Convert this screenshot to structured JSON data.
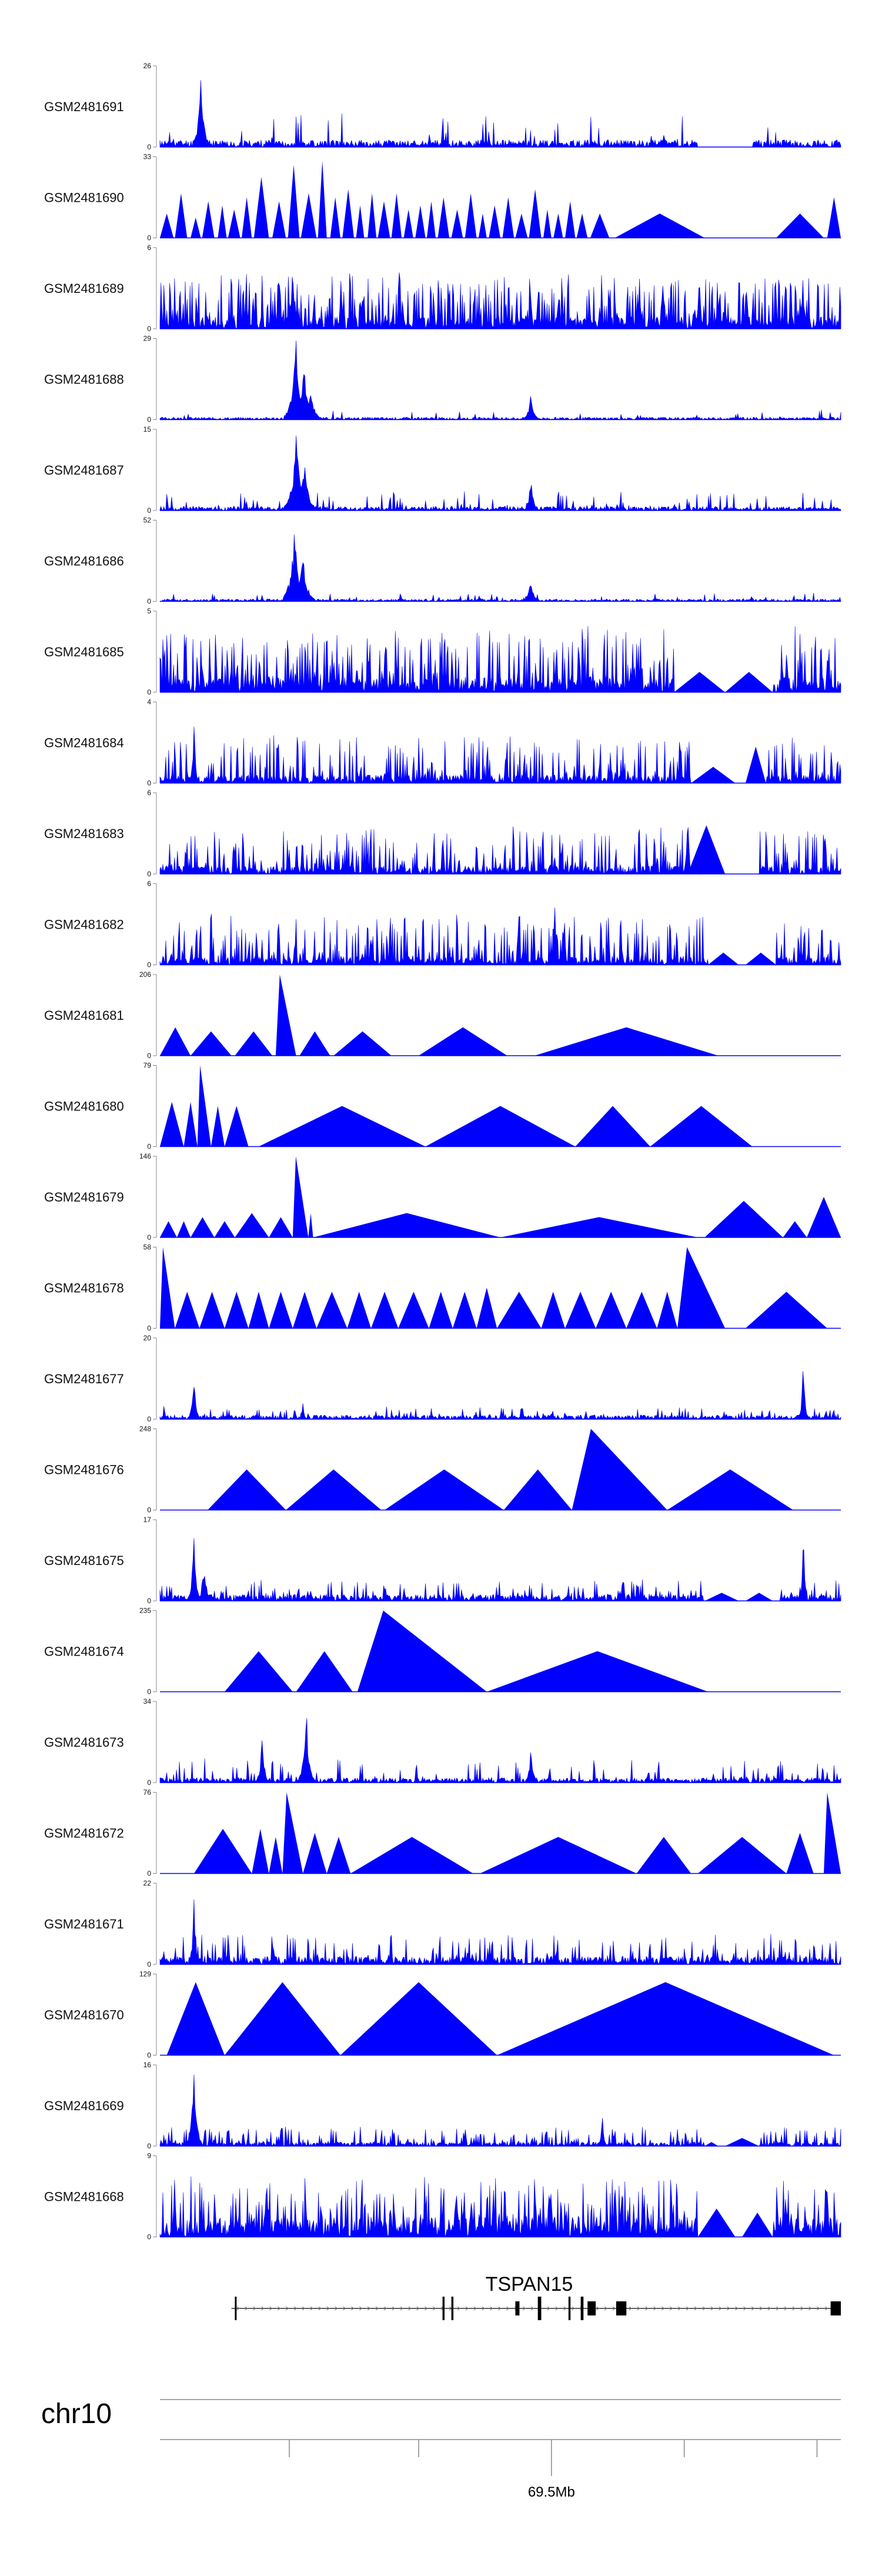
{
  "chart_data": {
    "type": "area",
    "title": "",
    "fill_color": "#0000ff",
    "axis_color": "#888888",
    "chromosome": "chr10",
    "position_label": "69.5Mb",
    "x_range": [
      0,
      1000
    ],
    "tracks": [
      {
        "name": "GSM2481691",
        "ymax": 26,
        "seed": 11,
        "base": 0.09,
        "spikeFreq": 0.06,
        "spikeAmp": 0.35,
        "peaks": [
          [
            60,
            1.0,
            4
          ],
          [
            740,
            0.22,
            3
          ]
        ],
        "tris": [],
        "gaps": [
          [
            790,
            870
          ]
        ]
      },
      {
        "name": "GSM2481690",
        "ymax": 33,
        "seed": 12,
        "base": 0,
        "spikeFreq": 0,
        "spikeAmp": 0,
        "peaks": [],
        "tris": [
          [
            0,
            20,
            0.3
          ],
          [
            22,
            40,
            0.55
          ],
          [
            45,
            60,
            0.25
          ],
          [
            62,
            80,
            0.45
          ],
          [
            85,
            98,
            0.4
          ],
          [
            100,
            118,
            0.35
          ],
          [
            120,
            135,
            0.5
          ],
          [
            138,
            160,
            0.75
          ],
          [
            165,
            185,
            0.45
          ],
          [
            188,
            205,
            0.9
          ],
          [
            207,
            230,
            0.55
          ],
          [
            232,
            245,
            0.95
          ],
          [
            250,
            265,
            0.5
          ],
          [
            268,
            285,
            0.6
          ],
          [
            288,
            300,
            0.4
          ],
          [
            305,
            318,
            0.55
          ],
          [
            320,
            338,
            0.45
          ],
          [
            340,
            355,
            0.55
          ],
          [
            358,
            372,
            0.35
          ],
          [
            375,
            390,
            0.4
          ],
          [
            392,
            405,
            0.45
          ],
          [
            408,
            425,
            0.5
          ],
          [
            428,
            445,
            0.35
          ],
          [
            448,
            465,
            0.55
          ],
          [
            468,
            480,
            0.3
          ],
          [
            483,
            500,
            0.4
          ],
          [
            503,
            520,
            0.5
          ],
          [
            522,
            540,
            0.3
          ],
          [
            542,
            560,
            0.6
          ],
          [
            563,
            575,
            0.35
          ],
          [
            578,
            592,
            0.3
          ],
          [
            595,
            610,
            0.45
          ],
          [
            612,
            628,
            0.3
          ],
          [
            632,
            660,
            0.3
          ],
          [
            668,
            800,
            0.3
          ],
          [
            900,
            900,
            0
          ],
          [
            905,
            975,
            0.3
          ],
          [
            980,
            1000,
            0.5
          ]
        ],
        "gaps": []
      },
      {
        "name": "GSM2481689",
        "ymax": 6,
        "seed": 13,
        "base": 0.15,
        "spikeFreq": 0.5,
        "spikeAmp": 0.55,
        "peaks": [
          [
            195,
            0.9,
            3
          ]
        ],
        "tris": [],
        "gaps": []
      },
      {
        "name": "GSM2481688",
        "ymax": 29,
        "seed": 14,
        "base": 0.03,
        "spikeFreq": 0.04,
        "spikeAmp": 0.1,
        "peaks": [
          [
            200,
            1.0,
            6
          ],
          [
            212,
            0.7,
            6
          ],
          [
            222,
            0.4,
            5
          ],
          [
            545,
            0.35,
            4
          ]
        ],
        "tris": [],
        "gaps": []
      },
      {
        "name": "GSM2481687",
        "ymax": 15,
        "seed": 15,
        "base": 0.05,
        "spikeFreq": 0.12,
        "spikeAmp": 0.2,
        "peaks": [
          [
            200,
            1.0,
            6
          ],
          [
            212,
            0.65,
            6
          ],
          [
            545,
            0.5,
            3
          ]
        ],
        "tris": [],
        "gaps": []
      },
      {
        "name": "GSM2481686",
        "ymax": 52,
        "seed": 16,
        "base": 0.03,
        "spikeFreq": 0.05,
        "spikeAmp": 0.08,
        "peaks": [
          [
            198,
            1.0,
            6
          ],
          [
            210,
            0.6,
            6
          ],
          [
            545,
            0.3,
            4
          ]
        ],
        "tris": [],
        "gaps": []
      },
      {
        "name": "GSM2481685",
        "ymax": 5,
        "seed": 17,
        "base": 0.18,
        "spikeFreq": 0.45,
        "spikeAmp": 0.65,
        "peaks": [],
        "tris": [
          [
            755,
            830,
            0.25
          ],
          [
            830,
            900,
            0.25
          ]
        ],
        "gaps": [
          [
            755,
            900
          ]
        ]
      },
      {
        "name": "GSM2481684",
        "ymax": 4,
        "seed": 18,
        "base": 0.1,
        "spikeFreq": 0.35,
        "spikeAmp": 0.5,
        "peaks": [
          [
            50,
            0.95,
            2
          ]
        ],
        "tris": [
          [
            780,
            845,
            0.2
          ],
          [
            860,
            890,
            0.45
          ]
        ],
        "gaps": [
          [
            780,
            890
          ]
        ]
      },
      {
        "name": "GSM2481683",
        "ymax": 6,
        "seed": 19,
        "base": 0.1,
        "spikeFreq": 0.3,
        "spikeAmp": 0.5,
        "peaks": [
          [
            775,
            0.95,
            2
          ]
        ],
        "tris": [
          [
            775,
            830,
            0.6
          ],
          [
            880,
            890,
            0.1
          ]
        ],
        "gaps": [
          [
            780,
            880
          ]
        ]
      },
      {
        "name": "GSM2481682",
        "ymax": 6,
        "seed": 20,
        "base": 0.1,
        "spikeFreq": 0.35,
        "spikeAmp": 0.55,
        "peaks": [
          [
            580,
            0.9,
            2
          ]
        ],
        "tris": [
          [
            805,
            850,
            0.15
          ],
          [
            860,
            905,
            0.15
          ]
        ],
        "gaps": [
          [
            805,
            905
          ]
        ]
      },
      {
        "name": "GSM2481681",
        "ymax": 206,
        "seed": 21,
        "base": 0,
        "spikeFreq": 0,
        "spikeAmp": 0,
        "peaks": [],
        "tris": [
          [
            0,
            45,
            0.35
          ],
          [
            45,
            105,
            0.3
          ],
          [
            110,
            165,
            0.3
          ],
          [
            170,
            200,
            1.0
          ],
          [
            205,
            250,
            0.3
          ],
          [
            255,
            340,
            0.3
          ],
          [
            380,
            510,
            0.35
          ],
          [
            550,
            820,
            0.35
          ]
        ],
        "gaps": []
      },
      {
        "name": "GSM2481680",
        "ymax": 79,
        "seed": 22,
        "base": 0,
        "spikeFreq": 0,
        "spikeAmp": 0,
        "peaks": [],
        "tris": [
          [
            0,
            35,
            0.55
          ],
          [
            35,
            55,
            0.55
          ],
          [
            55,
            75,
            1.0
          ],
          [
            75,
            95,
            0.5
          ],
          [
            95,
            130,
            0.5
          ],
          [
            145,
            390,
            0.5
          ],
          [
            390,
            610,
            0.5
          ],
          [
            610,
            720,
            0.5
          ],
          [
            720,
            870,
            0.5
          ]
        ],
        "gaps": []
      },
      {
        "name": "GSM2481679",
        "ymax": 146,
        "seed": 23,
        "base": 0,
        "spikeFreq": 0,
        "spikeAmp": 0,
        "peaks": [],
        "tris": [
          [
            0,
            25,
            0.2
          ],
          [
            25,
            45,
            0.2
          ],
          [
            45,
            80,
            0.25
          ],
          [
            80,
            110,
            0.2
          ],
          [
            110,
            160,
            0.3
          ],
          [
            160,
            195,
            0.25
          ],
          [
            195,
            218,
            1.0
          ],
          [
            218,
            225,
            0.3
          ],
          [
            225,
            500,
            0.3
          ],
          [
            500,
            790,
            0.25
          ],
          [
            800,
            915,
            0.45
          ],
          [
            915,
            950,
            0.2
          ],
          [
            950,
            1000,
            0.5
          ]
        ],
        "gaps": []
      },
      {
        "name": "GSM2481678",
        "ymax": 58,
        "seed": 24,
        "base": 0,
        "spikeFreq": 0,
        "spikeAmp": 0,
        "peaks": [],
        "tris": [
          [
            0,
            22,
            1.0
          ],
          [
            22,
            58,
            0.45
          ],
          [
            58,
            95,
            0.45
          ],
          [
            95,
            130,
            0.45
          ],
          [
            130,
            160,
            0.45
          ],
          [
            160,
            195,
            0.45
          ],
          [
            195,
            230,
            0.45
          ],
          [
            230,
            275,
            0.45
          ],
          [
            275,
            310,
            0.45
          ],
          [
            310,
            350,
            0.45
          ],
          [
            350,
            395,
            0.45
          ],
          [
            395,
            430,
            0.45
          ],
          [
            430,
            465,
            0.45
          ],
          [
            465,
            495,
            0.5
          ],
          [
            495,
            560,
            0.45
          ],
          [
            560,
            595,
            0.45
          ],
          [
            595,
            640,
            0.45
          ],
          [
            640,
            685,
            0.45
          ],
          [
            685,
            730,
            0.45
          ],
          [
            730,
            760,
            0.45
          ],
          [
            760,
            830,
            1.0
          ],
          [
            860,
            980,
            0.45
          ]
        ],
        "gaps": []
      },
      {
        "name": "GSM2481677",
        "ymax": 20,
        "seed": 25,
        "base": 0.05,
        "spikeFreq": 0.12,
        "spikeAmp": 0.12,
        "peaks": [
          [
            50,
            0.55,
            3
          ],
          [
            210,
            0.2,
            2
          ],
          [
            945,
            0.95,
            2
          ]
        ],
        "tris": [],
        "gaps": []
      },
      {
        "name": "GSM2481676",
        "ymax": 248,
        "seed": 26,
        "base": 0,
        "spikeFreq": 0,
        "spikeAmp": 0,
        "peaks": [],
        "tris": [
          [
            70,
            185,
            0.5
          ],
          [
            185,
            325,
            0.5
          ],
          [
            330,
            505,
            0.5
          ],
          [
            505,
            605,
            0.5
          ],
          [
            605,
            745,
            1.0
          ],
          [
            745,
            930,
            0.5
          ]
        ],
        "gaps": []
      },
      {
        "name": "GSM2481675",
        "ymax": 17,
        "seed": 27,
        "base": 0.08,
        "spikeFreq": 0.25,
        "spikeAmp": 0.2,
        "peaks": [
          [
            50,
            0.95,
            3
          ],
          [
            65,
            0.55,
            3
          ],
          [
            945,
            0.95,
            2
          ]
        ],
        "tris": [
          [
            800,
            850,
            0.1
          ],
          [
            860,
            900,
            0.1
          ]
        ],
        "gaps": [
          [
            800,
            910
          ]
        ]
      },
      {
        "name": "GSM2481674",
        "ymax": 235,
        "seed": 28,
        "base": 0,
        "spikeFreq": 0,
        "spikeAmp": 0,
        "peaks": [],
        "tris": [
          [
            95,
            195,
            0.5
          ],
          [
            200,
            283,
            0.5
          ],
          [
            290,
            480,
            1.0
          ],
          [
            480,
            805,
            0.5
          ]
        ],
        "gaps": []
      },
      {
        "name": "GSM2481673",
        "ymax": 34,
        "seed": 29,
        "base": 0.06,
        "spikeFreq": 0.15,
        "spikeAmp": 0.25,
        "peaks": [
          [
            150,
            0.6,
            3
          ],
          [
            215,
            0.95,
            4
          ],
          [
            545,
            0.5,
            3
          ]
        ],
        "tris": [],
        "gaps": []
      },
      {
        "name": "GSM2481672",
        "ymax": 76,
        "seed": 30,
        "base": 0,
        "spikeFreq": 0,
        "spikeAmp": 0,
        "peaks": [],
        "tris": [
          [
            50,
            135,
            0.55
          ],
          [
            135,
            160,
            0.55
          ],
          [
            160,
            180,
            0.45
          ],
          [
            180,
            210,
            1.0
          ],
          [
            210,
            245,
            0.5
          ],
          [
            245,
            280,
            0.45
          ],
          [
            280,
            460,
            0.45
          ],
          [
            470,
            700,
            0.45
          ],
          [
            700,
            780,
            0.45
          ],
          [
            790,
            920,
            0.45
          ],
          [
            920,
            960,
            0.5
          ],
          [
            975,
            1000,
            1.0
          ]
        ],
        "gaps": []
      },
      {
        "name": "GSM2481671",
        "ymax": 22,
        "seed": 31,
        "base": 0.1,
        "spikeFreq": 0.2,
        "spikeAmp": 0.3,
        "peaks": [
          [
            50,
            0.95,
            2
          ]
        ],
        "tris": [],
        "gaps": []
      },
      {
        "name": "GSM2481670",
        "ymax": 129,
        "seed": 32,
        "base": 0,
        "spikeFreq": 0,
        "spikeAmp": 0,
        "peaks": [],
        "tris": [
          [
            10,
            95,
            0.9
          ],
          [
            95,
            265,
            0.9
          ],
          [
            265,
            495,
            0.9
          ],
          [
            495,
            990,
            0.9
          ]
        ],
        "gaps": []
      },
      {
        "name": "GSM2481669",
        "ymax": 16,
        "seed": 33,
        "base": 0.05,
        "spikeFreq": 0.25,
        "spikeAmp": 0.2,
        "peaks": [
          [
            50,
            0.95,
            4
          ],
          [
            650,
            0.45,
            2
          ]
        ],
        "tris": [
          [
            800,
            820,
            0.05
          ],
          [
            830,
            880,
            0.1
          ]
        ],
        "gaps": [
          [
            800,
            880
          ]
        ]
      },
      {
        "name": "GSM2481668",
        "ymax": 9,
        "seed": 34,
        "base": 0.25,
        "spikeFreq": 0.35,
        "spikeAmp": 0.55,
        "peaks": [],
        "tris": [
          [
            790,
            845,
            0.35
          ],
          [
            855,
            900,
            0.3
          ]
        ],
        "gaps": [
          [
            790,
            900
          ]
        ]
      }
    ],
    "gene": {
      "name": "TSPAN15",
      "exons": [
        [
          110,
          112
        ],
        [
          415,
          418
        ],
        [
          428,
          431
        ],
        [
          522,
          528
        ],
        [
          555,
          560
        ],
        [
          600,
          603
        ],
        [
          618,
          622
        ],
        [
          628,
          640
        ],
        [
          670,
          685
        ],
        [
          985,
          1000
        ]
      ],
      "introns_start": 105,
      "introns_end": 1000
    },
    "axis_ticks": [
      190,
      380,
      575,
      770,
      965
    ],
    "axis_label_tick": 575
  }
}
